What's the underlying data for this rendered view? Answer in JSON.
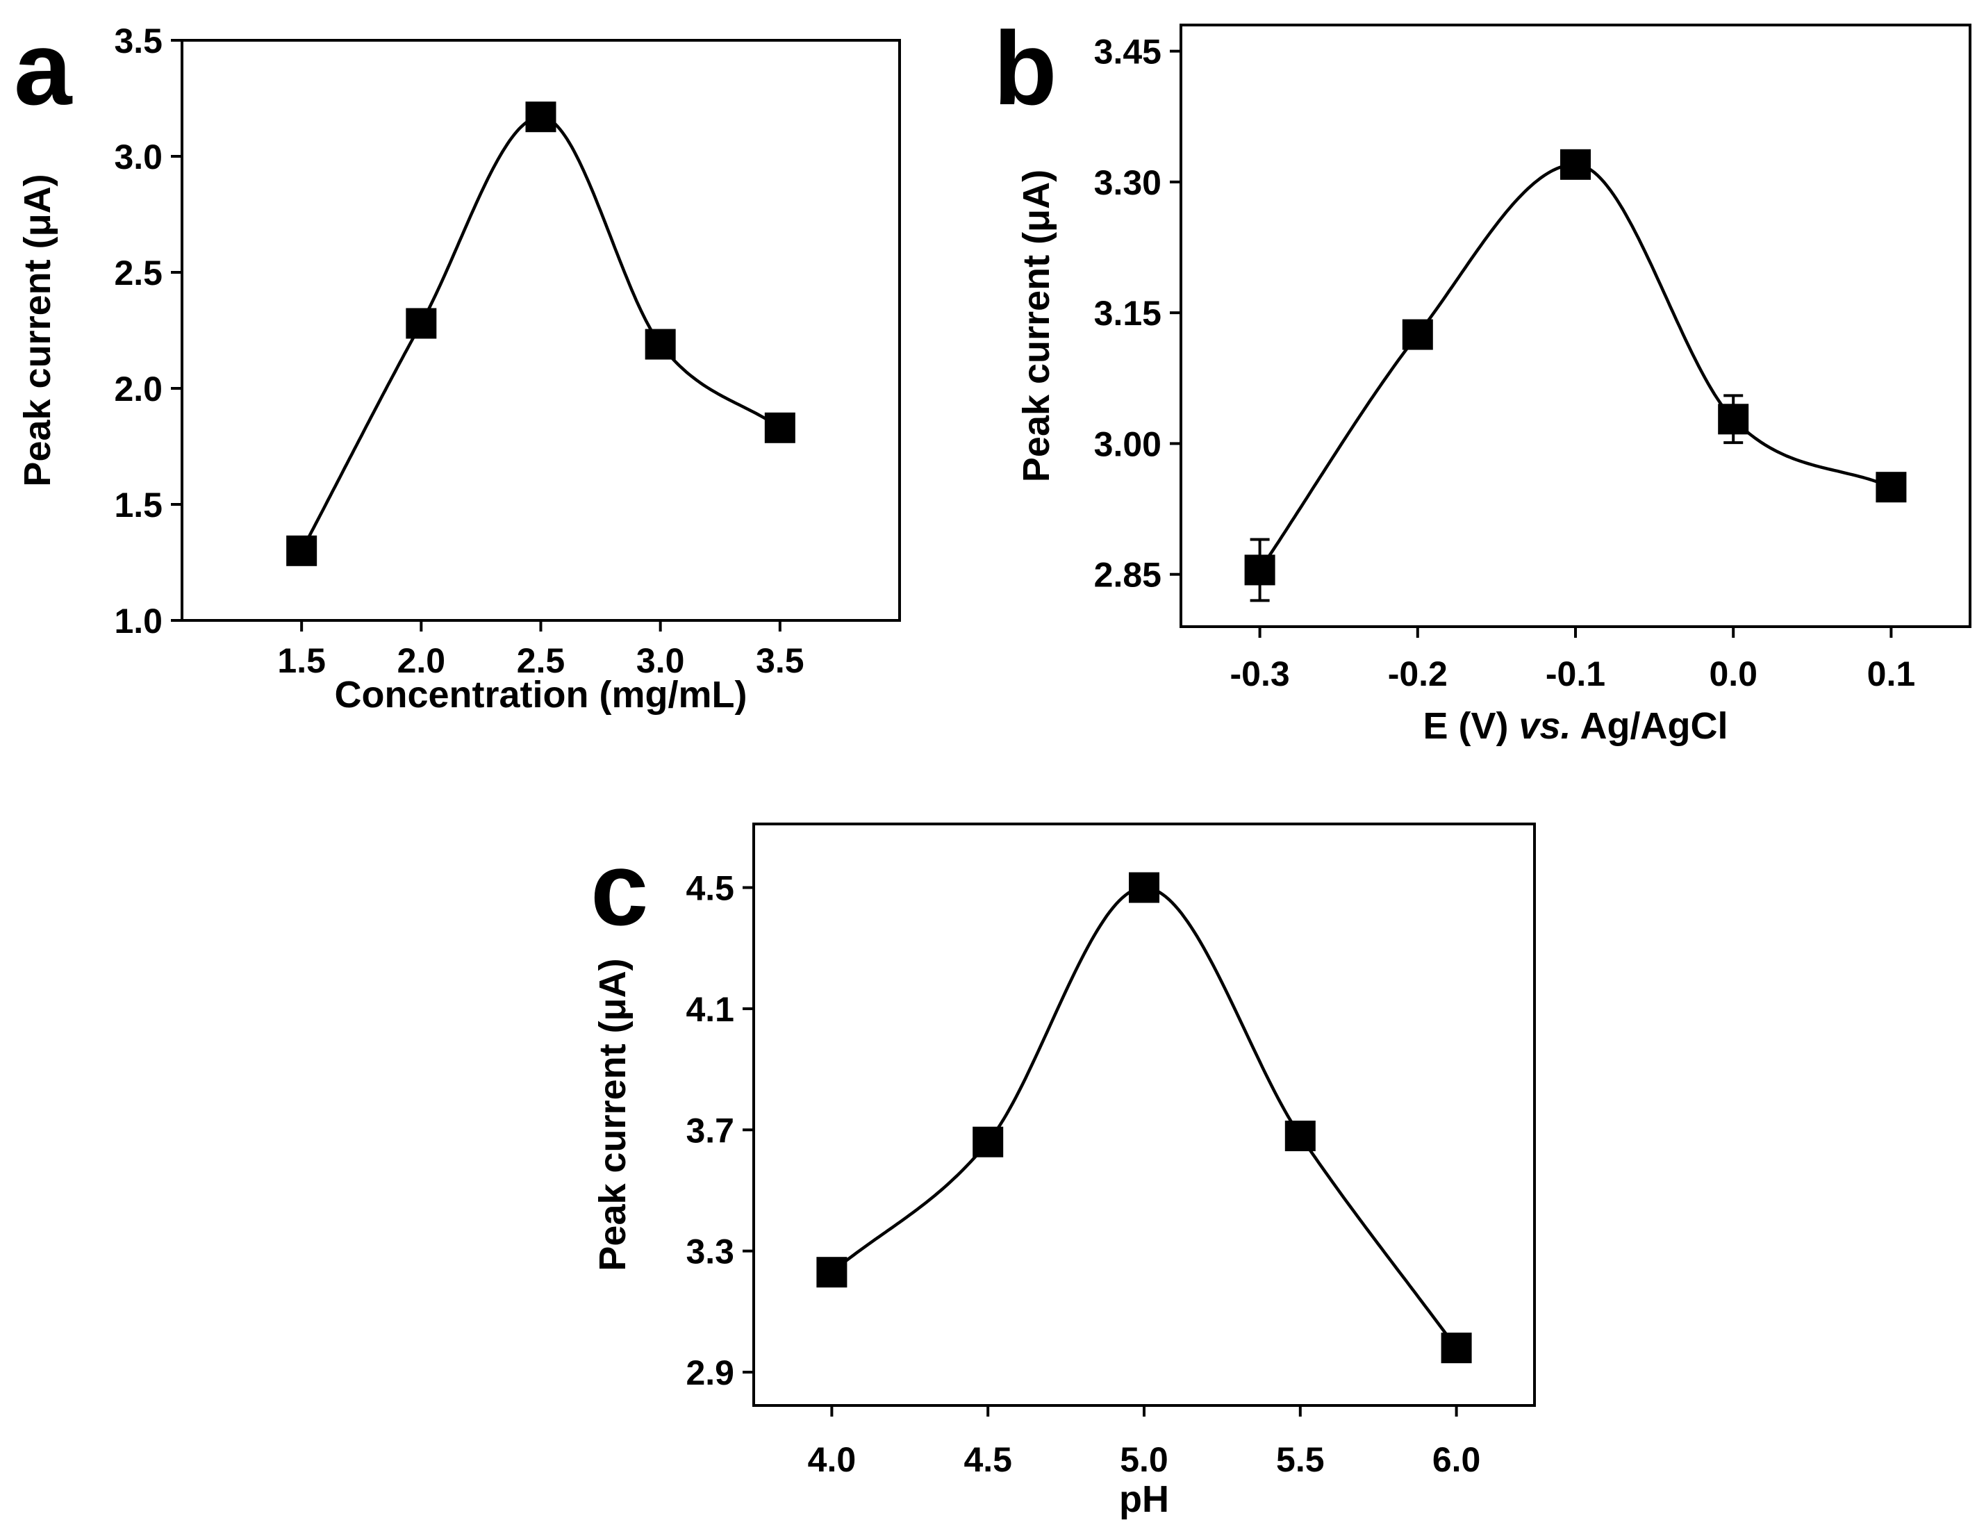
{
  "chart_data": [
    {
      "type": "scatter",
      "panel_label": "a",
      "xlabel": "Concentration (mg/mL)",
      "xlabel_parts": [
        {
          "text": "Concentration (mg/mL)",
          "italic": false
        }
      ],
      "ylabel": "Peak current (μA)",
      "xlim": [
        1.0,
        4.0
      ],
      "ylim": [
        1.0,
        3.5
      ],
      "xticks": [
        1.5,
        2.0,
        2.5,
        3.0,
        3.5
      ],
      "xtick_labels": [
        "1.5",
        "2.0",
        "2.5",
        "3.0",
        "3.5"
      ],
      "yticks": [
        1.0,
        1.5,
        2.0,
        2.5,
        3.0,
        3.5
      ],
      "ytick_labels": [
        "1.0",
        "1.5",
        "2.0",
        "2.5",
        "3.0",
        "3.5"
      ],
      "series": [
        {
          "name": "Peak current",
          "marker": "square",
          "smooth_line": true,
          "x": [
            1.5,
            2.0,
            2.5,
            3.0,
            3.5
          ],
          "y": [
            1.3,
            2.28,
            3.17,
            2.19,
            1.83
          ],
          "yerr": [
            0.02,
            0.02,
            0.02,
            0.02,
            0.02
          ]
        }
      ]
    },
    {
      "type": "scatter",
      "panel_label": "b",
      "xlabel": "E (V) vs. Ag/AgCl",
      "xlabel_parts": [
        {
          "text": "E (V) ",
          "italic": false
        },
        {
          "text": "vs.",
          "italic": true
        },
        {
          "text": " Ag/AgCl",
          "italic": false
        }
      ],
      "ylabel": "Peak current (μA)",
      "xlim": [
        -0.35,
        0.15
      ],
      "ylim": [
        2.79,
        3.48
      ],
      "xticks": [
        -0.3,
        -0.2,
        -0.1,
        0.0,
        0.1
      ],
      "xtick_labels": [
        "-0.3",
        "-0.2",
        "-0.1",
        "0.0",
        "0.1"
      ],
      "yticks": [
        2.85,
        3.0,
        3.15,
        3.3,
        3.45
      ],
      "ytick_labels": [
        "2.85",
        "3.00",
        "3.15",
        "3.30",
        "3.45"
      ],
      "series": [
        {
          "name": "Peak current",
          "marker": "square",
          "smooth_line": true,
          "x": [
            -0.3,
            -0.2,
            -0.1,
            0.0,
            0.1
          ],
          "y": [
            2.855,
            3.125,
            3.32,
            3.028,
            2.95
          ],
          "yerr": [
            0.035,
            0.008,
            0.008,
            0.027,
            0.006
          ]
        }
      ]
    },
    {
      "type": "scatter",
      "panel_label": "c",
      "xlabel": "pH",
      "xlabel_parts": [
        {
          "text": "pH",
          "italic": false
        }
      ],
      "ylabel": "Peak current (μA)",
      "xlim": [
        3.75,
        6.25
      ],
      "ylim": [
        2.79,
        4.71
      ],
      "xticks": [
        4.0,
        4.5,
        5.0,
        5.5,
        6.0
      ],
      "xtick_labels": [
        "4.0",
        "4.5",
        "5.0",
        "5.5",
        "6.0"
      ],
      "yticks": [
        2.9,
        3.3,
        3.7,
        4.1,
        4.5
      ],
      "ytick_labels": [
        "2.9",
        "3.3",
        "3.7",
        "4.1",
        "4.5"
      ],
      "series": [
        {
          "name": "Peak current",
          "marker": "square",
          "smooth_line": true,
          "x": [
            4.0,
            4.5,
            5.0,
            5.5,
            6.0
          ],
          "y": [
            3.23,
            3.66,
            4.5,
            3.68,
            2.98
          ],
          "yerr": [
            0.01,
            0.01,
            0.01,
            0.01,
            0.01
          ]
        }
      ]
    }
  ]
}
